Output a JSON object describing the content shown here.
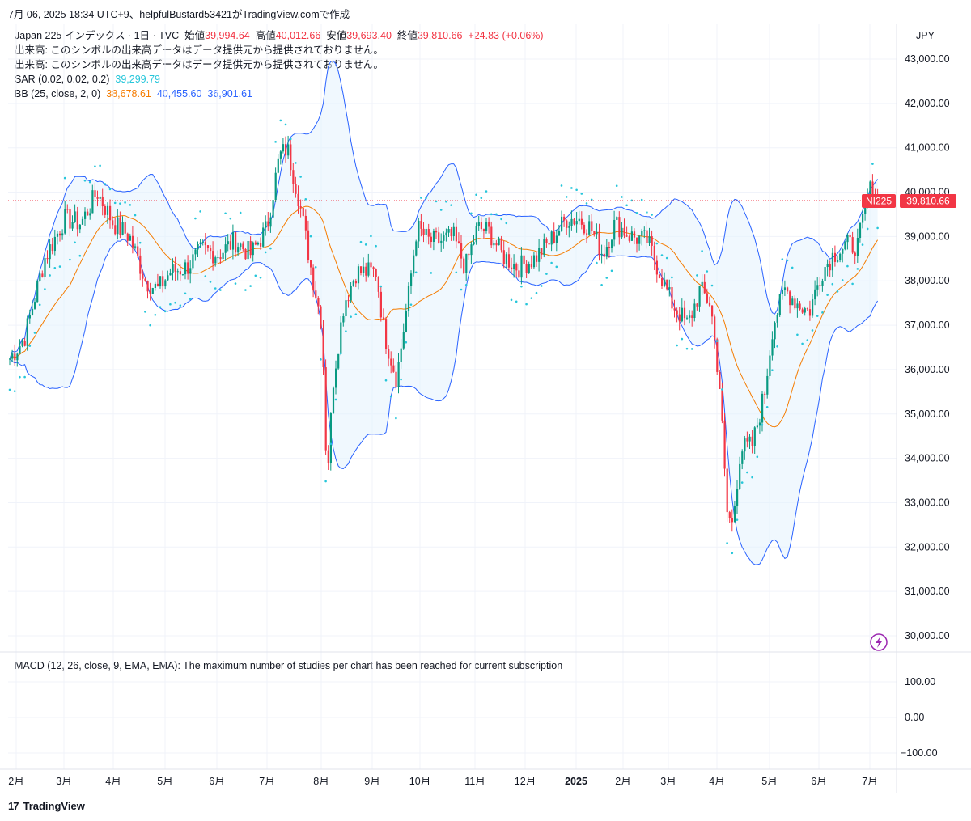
{
  "header": {
    "attribution": "7月 06, 2025 18:34 UTC+9、helpfulBustard53421がTradingView.comで作成"
  },
  "legend": {
    "symbol": "Japan 225 インデックス · 1日 · TVC",
    "open_label": "始値",
    "open": "39,994.64",
    "high_label": "高値",
    "high": "40,012.66",
    "low_label": "安値",
    "low": "39,693.40",
    "close_label": "終値",
    "close": "39,810.66",
    "change": "+24.83 (+0.06%)",
    "volume_note_1": "出来高: このシンボルの出来高データはデータ提供元から提供されておりません。",
    "volume_note_2": "出来高: このシンボルの出来高データはデータ提供元から提供されておりません。",
    "sar_label": "SAR (0.02, 0.02, 0.2)",
    "sar_value": "39,299.79",
    "bb_label": "BB (25, close, 2, 0)",
    "bb_basis": "38,678.61",
    "bb_upper": "40,455.60",
    "bb_lower": "36,901.61"
  },
  "macd_label": "MACD (12, 26, close, 9, EMA, EMA): The maximum number of studies per chart has been reached for current subscription",
  "price_axis": {
    "currency": "JPY",
    "ticks": [
      "43,000.00",
      "42,000.00",
      "41,000.00",
      "40,000.00",
      "39,000.00",
      "38,000.00",
      "37,000.00",
      "36,000.00",
      "35,000.00",
      "34,000.00",
      "33,000.00",
      "32,000.00",
      "31,000.00",
      "30,000.00"
    ],
    "symbol_tag": "NI225",
    "last_price_tag": "39,810.66"
  },
  "macd_axis": {
    "ticks": [
      "100.00",
      "0.00",
      "−100.00"
    ]
  },
  "time_axis": {
    "ticks": [
      "2月",
      "3月",
      "4月",
      "5月",
      "6月",
      "7月",
      "8月",
      "9月",
      "10月",
      "11月",
      "12月",
      "2025",
      "2月",
      "3月",
      "4月",
      "5月",
      "6月",
      "7月"
    ]
  },
  "footer": {
    "brand": "TradingView",
    "logo_glyph": "17"
  },
  "colors": {
    "up": "#089981",
    "down": "#f23645",
    "sar": "#26c6da",
    "bb_basis": "#f57c00",
    "bb_band": "#2962ff",
    "last_price": "#f23645"
  },
  "chart_data": {
    "type": "line",
    "title": "Japan 225 インデックス · 1日 · TVC",
    "x": [
      "2024-02",
      "2024-03",
      "2024-04",
      "2024-05",
      "2024-06",
      "2024-07",
      "2024-08",
      "2024-09",
      "2024-10",
      "2024-11",
      "2024-12",
      "2025-01",
      "2025-02",
      "2025-03",
      "2025-04",
      "2025-05",
      "2025-06",
      "2025-07"
    ],
    "ylim": [
      29700,
      43500
    ],
    "series": [
      {
        "name": "BB (25, close, 2, 0)",
        "values": [
          36000,
          38800,
          39400,
          38000,
          38500,
          39200,
          38000,
          36800,
          38500,
          38800,
          38700,
          39300,
          38800,
          38600,
          34800,
          36000,
          37500,
          38679
        ]
      }
    ],
    "last_close": 39810.66
  }
}
